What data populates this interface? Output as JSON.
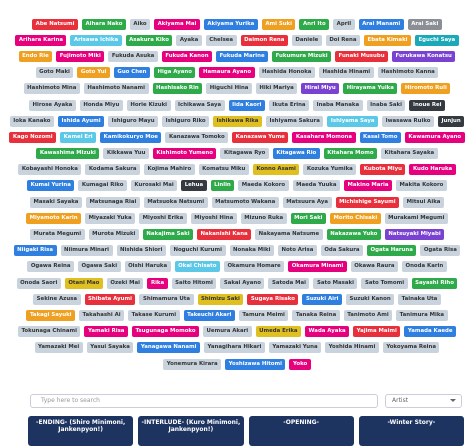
{
  "search": {
    "placeholder": "Type here to search",
    "filter": "Artist"
  },
  "cards": [
    {
      "title": "-ENDING- (Shiro Minimoni, Jankenpyon!)"
    },
    {
      "title": "-INTERLUDE- (Kuro Minimoni, Jankenpyon!)"
    },
    {
      "title": "-OPENING-"
    },
    {
      "title": "-Winter Story-"
    }
  ],
  "tags": [
    {
      "name": "Abe Natsumi",
      "color": "#e8303d"
    },
    {
      "name": "Aihara Nako",
      "color": "#2eaa4a"
    },
    {
      "name": "Aiko",
      "color": "#c9d3dd"
    },
    {
      "name": "Akiyama Mai",
      "color": "#e6007e"
    },
    {
      "name": "Akiyama Yurika",
      "color": "#2f7fe0"
    },
    {
      "name": "Ami Suki",
      "color": "#f0a020"
    },
    {
      "name": "Anri Ito",
      "color": "#2eaa4a"
    },
    {
      "name": "April",
      "color": "#c9d3dd"
    },
    {
      "name": "Arai Manami",
      "color": "#2f7fe0"
    },
    {
      "name": "Arai Saki",
      "color": "#8b8f95"
    },
    {
      "name": "Arihara Karina",
      "color": "#e6007e"
    },
    {
      "name": "Arisawa Ichika",
      "color": "#5bc8e8"
    },
    {
      "name": "Asakura Kiko",
      "color": "#2eaa4a"
    },
    {
      "name": "Ayaka",
      "color": "#c9d3dd"
    },
    {
      "name": "Chelsea",
      "color": "#c9d3dd"
    },
    {
      "name": "Daimon Rena",
      "color": "#e8303d"
    },
    {
      "name": "Daniele",
      "color": "#c9d3dd"
    },
    {
      "name": "Doi Rena",
      "color": "#c9d3dd"
    },
    {
      "name": "Ebata Kimaki",
      "color": "#f0a020"
    },
    {
      "name": "Eguchi Saya",
      "color": "#1ba8b8"
    },
    {
      "name": "Endo Rie",
      "color": "#f0a020"
    },
    {
      "name": "Fujimoto Miki",
      "color": "#e6007e"
    },
    {
      "name": "Fukuda Asuka",
      "color": "#c9d3dd"
    },
    {
      "name": "Fukuda Kanon",
      "color": "#e6007e"
    },
    {
      "name": "Fukuda Marine",
      "color": "#2f7fe0"
    },
    {
      "name": "Fukumura Mizuki",
      "color": "#2eaa4a"
    },
    {
      "name": "Funaki Musubu",
      "color": "#e8303d"
    },
    {
      "name": "Furukawa Konatsu",
      "color": "#7a42d0"
    },
    {
      "name": "Goto Maki",
      "color": "#c9d3dd"
    },
    {
      "name": "Goto Yui",
      "color": "#f0a020"
    },
    {
      "name": "Guo Chen",
      "color": "#2f7fe0"
    },
    {
      "name": "Higa Ayano",
      "color": "#2eaa4a"
    },
    {
      "name": "Hamaura Ayano",
      "color": "#e6007e"
    },
    {
      "name": "Hashida Honoka",
      "color": "#c9d3dd"
    },
    {
      "name": "Hashida Hinami",
      "color": "#c9d3dd"
    },
    {
      "name": "Hashimoto Kanna",
      "color": "#c9d3dd"
    },
    {
      "name": "Hashimoto Mina",
      "color": "#c9d3dd"
    },
    {
      "name": "Hashimoto Nanami",
      "color": "#c9d3dd"
    },
    {
      "name": "Hashisako Rin",
      "color": "#2eaa4a"
    },
    {
      "name": "Higuchi Hina",
      "color": "#c9d3dd"
    },
    {
      "name": "Hiki Mariya",
      "color": "#c9d3dd"
    },
    {
      "name": "Hirai Miyu",
      "color": "#7a42d0"
    },
    {
      "name": "Hirayama Yuika",
      "color": "#2eaa4a"
    },
    {
      "name": "Hiromoto Ruli",
      "color": "#f0a020"
    },
    {
      "name": "Hirose Ayaka",
      "color": "#c9d3dd"
    },
    {
      "name": "Honda Miyu",
      "color": "#c9d3dd"
    },
    {
      "name": "Horie Kizuki",
      "color": "#c9d3dd"
    },
    {
      "name": "Ichikawa Saya",
      "color": "#c9d3dd"
    },
    {
      "name": "Iida Kaori",
      "color": "#2f7fe0"
    },
    {
      "name": "Ikuta Erina",
      "color": "#c9d3dd"
    },
    {
      "name": "Inaba Manaka",
      "color": "#c9d3dd"
    },
    {
      "name": "Inaba Saki",
      "color": "#c9d3dd"
    },
    {
      "name": "Inoue Rei",
      "color": "#343a40"
    },
    {
      "name": "Ioka Kanako",
      "color": "#c9d3dd"
    },
    {
      "name": "Ishida Ayumi",
      "color": "#2f7fe0"
    },
    {
      "name": "Ishiguro Mayu",
      "color": "#c9d3dd"
    },
    {
      "name": "Ishiguro Riko",
      "color": "#c9d3dd"
    },
    {
      "name": "Ishikawa Rika",
      "color": "#e0c020"
    },
    {
      "name": "Ishiyama Sakura",
      "color": "#c9d3dd"
    },
    {
      "name": "Ishiyama Saya",
      "color": "#5bc8e8"
    },
    {
      "name": "Iwasawa Ruiko",
      "color": "#c9d3dd"
    },
    {
      "name": "Junjun",
      "color": "#343a40"
    },
    {
      "name": "Kago Nozomi",
      "color": "#e8303d"
    },
    {
      "name": "Kamei Eri",
      "color": "#5bc8e8"
    },
    {
      "name": "Kamikokuryo Moe",
      "color": "#2f7fe0"
    },
    {
      "name": "Kanazawa Tomoko",
      "color": "#c9d3dd"
    },
    {
      "name": "Kanazawa Yume",
      "color": "#e8303d"
    },
    {
      "name": "Kasahara Momona",
      "color": "#e6007e"
    },
    {
      "name": "Kasai Tomo",
      "color": "#2f7fe0"
    },
    {
      "name": "Kawamura Ayano",
      "color": "#e6007e"
    },
    {
      "name": "Kawashima Mizuki",
      "color": "#2eaa4a"
    },
    {
      "name": "Kikkawa Yuu",
      "color": "#c9d3dd"
    },
    {
      "name": "Kishimoto Yumeno",
      "color": "#e6007e"
    },
    {
      "name": "Kitagawa Ryo",
      "color": "#c9d3dd"
    },
    {
      "name": "Kitagawa Rio",
      "color": "#2f7fe0"
    },
    {
      "name": "Kitahara Momo",
      "color": "#2eaa4a"
    },
    {
      "name": "Kitahara Sayaka",
      "color": "#c9d3dd"
    },
    {
      "name": "Kobayashi Honoka",
      "color": "#c9d3dd"
    },
    {
      "name": "Kodama Sakura",
      "color": "#c9d3dd"
    },
    {
      "name": "Kojima Mahiro",
      "color": "#c9d3dd"
    },
    {
      "name": "Komatsu Miku",
      "color": "#c9d3dd"
    },
    {
      "name": "Konno Asami",
      "color": "#e0c020"
    },
    {
      "name": "Kozuka Yumika",
      "color": "#c9d3dd"
    },
    {
      "name": "Kubota Miyu",
      "color": "#e8303d"
    },
    {
      "name": "Kudo Haruka",
      "color": "#e6007e"
    },
    {
      "name": "Kumai Yurina",
      "color": "#2f7fe0"
    },
    {
      "name": "Kumagai Riko",
      "color": "#c9d3dd"
    },
    {
      "name": "Kurosaki Mai",
      "color": "#c9d3dd"
    },
    {
      "name": "Lehua",
      "color": "#343a40"
    },
    {
      "name": "Linlin",
      "color": "#2eaa4a"
    },
    {
      "name": "Maeda Kokoro",
      "color": "#c9d3dd"
    },
    {
      "name": "Maeda Yuuka",
      "color": "#c9d3dd"
    },
    {
      "name": "Makino Maria",
      "color": "#e6007e"
    },
    {
      "name": "Makita Kokoro",
      "color": "#c9d3dd"
    },
    {
      "name": "Masaki Sayaka",
      "color": "#c9d3dd"
    },
    {
      "name": "Matsunaga Riai",
      "color": "#c9d3dd"
    },
    {
      "name": "Matsuoka Natsumi",
      "color": "#c9d3dd"
    },
    {
      "name": "Matsumoto Wakana",
      "color": "#c9d3dd"
    },
    {
      "name": "Matsuura Aya",
      "color": "#c9d3dd"
    },
    {
      "name": "Michishige Sayumi",
      "color": "#e8303d"
    },
    {
      "name": "Mitsui Aika",
      "color": "#c9d3dd"
    },
    {
      "name": "Miyamoto Karin",
      "color": "#f0a020"
    },
    {
      "name": "Miyazaki Yuka",
      "color": "#c9d3dd"
    },
    {
      "name": "Miyoshi Erika",
      "color": "#c9d3dd"
    },
    {
      "name": "Miyoshi Hina",
      "color": "#c9d3dd"
    },
    {
      "name": "Mizuno Ruka",
      "color": "#c9d3dd"
    },
    {
      "name": "Mori Saki",
      "color": "#2eaa4a"
    },
    {
      "name": "Morito Chisaki",
      "color": "#f0a020"
    },
    {
      "name": "Murakami Megumi",
      "color": "#c9d3dd"
    },
    {
      "name": "Murata Megumi",
      "color": "#c9d3dd"
    },
    {
      "name": "Murota Mizuki",
      "color": "#c9d3dd"
    },
    {
      "name": "Nakajima Saki",
      "color": "#2eaa4a"
    },
    {
      "name": "Nakanishi Kana",
      "color": "#e8303d"
    },
    {
      "name": "Nakayama Natsume",
      "color": "#c9d3dd"
    },
    {
      "name": "Nakazawa Yuko",
      "color": "#2eaa4a"
    },
    {
      "name": "Natsuyaki Miyabi",
      "color": "#7a42d0"
    },
    {
      "name": "Niigaki Risa",
      "color": "#2f7fe0"
    },
    {
      "name": "Niimura Minari",
      "color": "#c9d3dd"
    },
    {
      "name": "Nishida Shiori",
      "color": "#c9d3dd"
    },
    {
      "name": "Noguchi Kurumi",
      "color": "#c9d3dd"
    },
    {
      "name": "Nonaka Miki",
      "color": "#c9d3dd"
    },
    {
      "name": "Noto Arisa",
      "color": "#c9d3dd"
    },
    {
      "name": "Oda Sakura",
      "color": "#c9d3dd"
    },
    {
      "name": "Ogata Haruna",
      "color": "#2eaa4a"
    },
    {
      "name": "Ogata Risa",
      "color": "#c9d3dd"
    },
    {
      "name": "Ogawa Reina",
      "color": "#c9d3dd"
    },
    {
      "name": "Ogawa Saki",
      "color": "#c9d3dd"
    },
    {
      "name": "Oishi Haruka",
      "color": "#c9d3dd"
    },
    {
      "name": "Okai Chisato",
      "color": "#5bc8e8"
    },
    {
      "name": "Okamura Homare",
      "color": "#c9d3dd"
    },
    {
      "name": "Okamura Minami",
      "color": "#e6007e"
    },
    {
      "name": "Okawa Raura",
      "color": "#c9d3dd"
    },
    {
      "name": "Onoda Karin",
      "color": "#c9d3dd"
    },
    {
      "name": "Onoda Saori",
      "color": "#c9d3dd"
    },
    {
      "name": "Otani Mao",
      "color": "#e0c020"
    },
    {
      "name": "Ozeki Mai",
      "color": "#c9d3dd"
    },
    {
      "name": "Rika",
      "color": "#e6007e"
    },
    {
      "name": "Saito Hitomi",
      "color": "#c9d3dd"
    },
    {
      "name": "Sakai Ayano",
      "color": "#c9d3dd"
    },
    {
      "name": "Satoda Mai",
      "color": "#c9d3dd"
    },
    {
      "name": "Sato Masaki",
      "color": "#c9d3dd"
    },
    {
      "name": "Sato Tomomi",
      "color": "#c9d3dd"
    },
    {
      "name": "Sayashi Riho",
      "color": "#2eaa4a"
    },
    {
      "name": "Sekine Azusa",
      "color": "#c9d3dd"
    },
    {
      "name": "Shibata Ayumi",
      "color": "#e8303d"
    },
    {
      "name": "Shimamura Uta",
      "color": "#c9d3dd"
    },
    {
      "name": "Shimizu Saki",
      "color": "#e0c020"
    },
    {
      "name": "Sugaya Risako",
      "color": "#e8303d"
    },
    {
      "name": "Suzuki Airi",
      "color": "#2f7fe0"
    },
    {
      "name": "Suzuki Kanon",
      "color": "#c9d3dd"
    },
    {
      "name": "Tainaka Uta",
      "color": "#c9d3dd"
    },
    {
      "name": "Takagi Sayuki",
      "color": "#f0a020"
    },
    {
      "name": "Takahashi Ai",
      "color": "#c9d3dd"
    },
    {
      "name": "Takase Kurumi",
      "color": "#c9d3dd"
    },
    {
      "name": "Takeuchi Akari",
      "color": "#2f7fe0"
    },
    {
      "name": "Tamura Meimi",
      "color": "#c9d3dd"
    },
    {
      "name": "Tanaka Reina",
      "color": "#c9d3dd"
    },
    {
      "name": "Tanimoto Ami",
      "color": "#c9d3dd"
    },
    {
      "name": "Tanimura Mika",
      "color": "#c9d3dd"
    },
    {
      "name": "Tokunaga Chinami",
      "color": "#c9d3dd"
    },
    {
      "name": "Yamaki Risa",
      "color": "#e6007e"
    },
    {
      "name": "Tsugunaga Momoko",
      "color": "#e6007e"
    },
    {
      "name": "Uemura Akari",
      "color": "#c9d3dd"
    },
    {
      "name": "Umeda Erika",
      "color": "#e0c020"
    },
    {
      "name": "Wada Ayaka",
      "color": "#e6007e"
    },
    {
      "name": "Yajima Maimi",
      "color": "#e8303d"
    },
    {
      "name": "Yamada Kaede",
      "color": "#2f7fe0"
    },
    {
      "name": "Yamazaki Mei",
      "color": "#c9d3dd"
    },
    {
      "name": "Yasui Sayaka",
      "color": "#c9d3dd"
    },
    {
      "name": "Yanagawa Nanami",
      "color": "#2f7fe0"
    },
    {
      "name": "Yanagihara Hikari",
      "color": "#c9d3dd"
    },
    {
      "name": "Yamazaki Yuna",
      "color": "#c9d3dd"
    },
    {
      "name": "Yoshida Hinami",
      "color": "#c9d3dd"
    },
    {
      "name": "Yokoyama Reina",
      "color": "#c9d3dd"
    },
    {
      "name": "Yonemura Kirara",
      "color": "#c9d3dd"
    },
    {
      "name": "Yoshizawa Hitomi",
      "color": "#2f7fe0"
    },
    {
      "name": "Yoko",
      "color": "#e6007e"
    }
  ]
}
